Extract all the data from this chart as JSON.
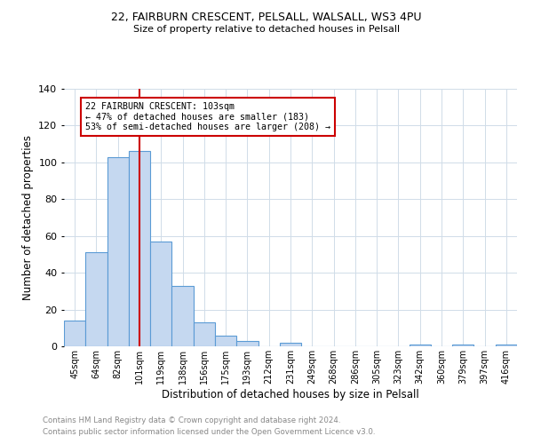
{
  "title1": "22, FAIRBURN CRESCENT, PELSALL, WALSALL, WS3 4PU",
  "title2": "Size of property relative to detached houses in Pelsall",
  "xlabel": "Distribution of detached houses by size in Pelsall",
  "ylabel": "Number of detached properties",
  "categories": [
    "45sqm",
    "64sqm",
    "82sqm",
    "101sqm",
    "119sqm",
    "138sqm",
    "156sqm",
    "175sqm",
    "193sqm",
    "212sqm",
    "231sqm",
    "249sqm",
    "268sqm",
    "286sqm",
    "305sqm",
    "323sqm",
    "342sqm",
    "360sqm",
    "379sqm",
    "397sqm",
    "416sqm"
  ],
  "values": [
    14,
    51,
    103,
    106,
    57,
    33,
    13,
    6,
    3,
    0,
    2,
    0,
    0,
    0,
    0,
    0,
    1,
    0,
    1,
    0,
    1
  ],
  "bar_color": "#c5d8f0",
  "bar_edge_color": "#5b9bd5",
  "highlight_index": 3,
  "highlight_line_color": "#cc0000",
  "ylim": [
    0,
    140
  ],
  "yticks": [
    0,
    20,
    40,
    60,
    80,
    100,
    120,
    140
  ],
  "annotation_box_text": "22 FAIRBURN CRESCENT: 103sqm\n← 47% of detached houses are smaller (183)\n53% of semi-detached houses are larger (208) →",
  "annotation_box_edge_color": "#cc0000",
  "footer1": "Contains HM Land Registry data © Crown copyright and database right 2024.",
  "footer2": "Contains public sector information licensed under the Open Government Licence v3.0.",
  "background_color": "#ffffff",
  "grid_color": "#d0dce8"
}
